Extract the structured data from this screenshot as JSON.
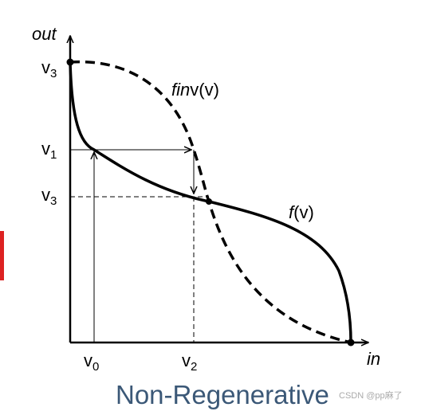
{
  "axes": {
    "y_label": "out",
    "x_label": "in"
  },
  "y_labels": [
    {
      "base": "v",
      "sub": "3"
    },
    {
      "base": "v",
      "sub": "1"
    },
    {
      "base": "v",
      "sub": "3"
    }
  ],
  "x_labels": [
    {
      "base": "v",
      "sub": "0"
    },
    {
      "base": "v",
      "sub": "2"
    }
  ],
  "curves": {
    "finv": {
      "italic": "fin",
      "rest": "v(v)"
    },
    "f": {
      "italic": "f",
      "rest": "(v)"
    }
  },
  "caption": "Non-Regenerative",
  "watermark": "CSDN @pp麻了"
}
